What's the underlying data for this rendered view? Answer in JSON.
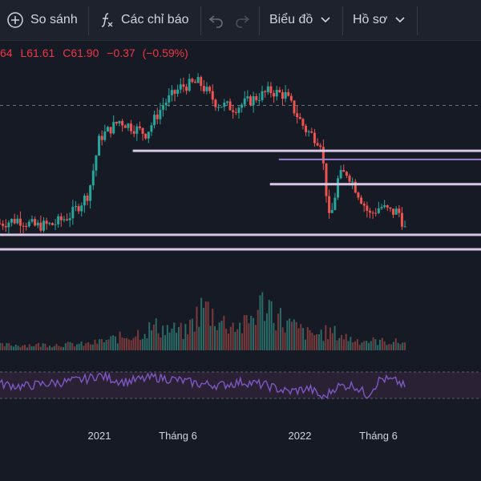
{
  "toolbar": {
    "compare_label": "So sánh",
    "indicators_label": "Các chỉ báo",
    "chart_type_label": "Biểu đồ",
    "profile_label": "Hồ sơ"
  },
  "legend": {
    "open_fragment": "64",
    "low_label": "L",
    "low_value": "61.61",
    "close_label": "C",
    "close_value": "61.90",
    "change": "−0.37",
    "change_pct": "(−0.59%)"
  },
  "colors": {
    "background": "#161a25",
    "up": "#26a69a",
    "down": "#ef5350",
    "rsi": "#7e57c2",
    "hline": "#d8c8e6",
    "hline_violet": "#9b7fd1"
  },
  "x_axis": {
    "labels": [
      "2021",
      "Tháng 6",
      "2022",
      "Tháng 6"
    ]
  },
  "chart_data": {
    "type": "candlestick",
    "x_ticks": [
      "2021",
      "Tháng 6",
      "2022",
      "Tháng 6"
    ],
    "price_path": [
      [
        0.0,
        62.5
      ],
      [
        0.04,
        63.0
      ],
      [
        0.08,
        62.2
      ],
      [
        0.12,
        62.4
      ],
      [
        0.16,
        63.5
      ],
      [
        0.2,
        66.0
      ],
      [
        0.225,
        72.5
      ],
      [
        0.27,
        74.5
      ],
      [
        0.33,
        73.0
      ],
      [
        0.37,
        76.5
      ],
      [
        0.41,
        78.5
      ],
      [
        0.45,
        79.0
      ],
      [
        0.49,
        76.5
      ],
      [
        0.53,
        76.0
      ],
      [
        0.57,
        77.0
      ],
      [
        0.61,
        78.0
      ],
      [
        0.645,
        77.5
      ],
      [
        0.69,
        73.5
      ],
      [
        0.725,
        72.0
      ],
      [
        0.745,
        62.5
      ],
      [
        0.765,
        68.0
      ],
      [
        0.785,
        68.5
      ],
      [
        0.81,
        66.0
      ],
      [
        0.835,
        63.5
      ],
      [
        0.86,
        64.5
      ],
      [
        0.885,
        63.8
      ],
      [
        0.9,
        64.0
      ],
      [
        0.915,
        61.9
      ]
    ],
    "horizontal_levels": [
      {
        "price": 71.0,
        "start": 0.3,
        "style": "light"
      },
      {
        "price": 70.0,
        "start": 0.63,
        "style": "violet"
      },
      {
        "price": 67.1,
        "start": 0.61,
        "style": "light"
      },
      {
        "price": 61.2,
        "start": 0.0,
        "style": "light"
      },
      {
        "price": 59.5,
        "start": 0.0,
        "style": "light"
      }
    ],
    "dashed_level": 76.3,
    "volume_profile": [
      [
        0.0,
        0.1
      ],
      [
        0.2,
        0.12
      ],
      [
        0.3,
        0.3
      ],
      [
        0.35,
        0.45
      ],
      [
        0.42,
        0.35
      ],
      [
        0.46,
        0.85
      ],
      [
        0.5,
        0.55
      ],
      [
        0.55,
        0.45
      ],
      [
        0.6,
        0.95
      ],
      [
        0.64,
        0.55
      ],
      [
        0.7,
        0.3
      ],
      [
        0.75,
        0.35
      ],
      [
        0.8,
        0.2
      ],
      [
        0.92,
        0.15
      ]
    ],
    "rsi": [
      [
        0.0,
        52
      ],
      [
        0.05,
        48
      ],
      [
        0.1,
        52
      ],
      [
        0.15,
        55
      ],
      [
        0.2,
        60
      ],
      [
        0.22,
        65
      ],
      [
        0.28,
        55
      ],
      [
        0.35,
        62
      ],
      [
        0.4,
        58
      ],
      [
        0.45,
        52
      ],
      [
        0.5,
        50
      ],
      [
        0.55,
        55
      ],
      [
        0.6,
        50
      ],
      [
        0.65,
        40
      ],
      [
        0.7,
        45
      ],
      [
        0.73,
        30
      ],
      [
        0.76,
        48
      ],
      [
        0.8,
        50
      ],
      [
        0.83,
        35
      ],
      [
        0.86,
        60
      ],
      [
        0.9,
        55
      ],
      [
        0.92,
        45
      ]
    ]
  }
}
